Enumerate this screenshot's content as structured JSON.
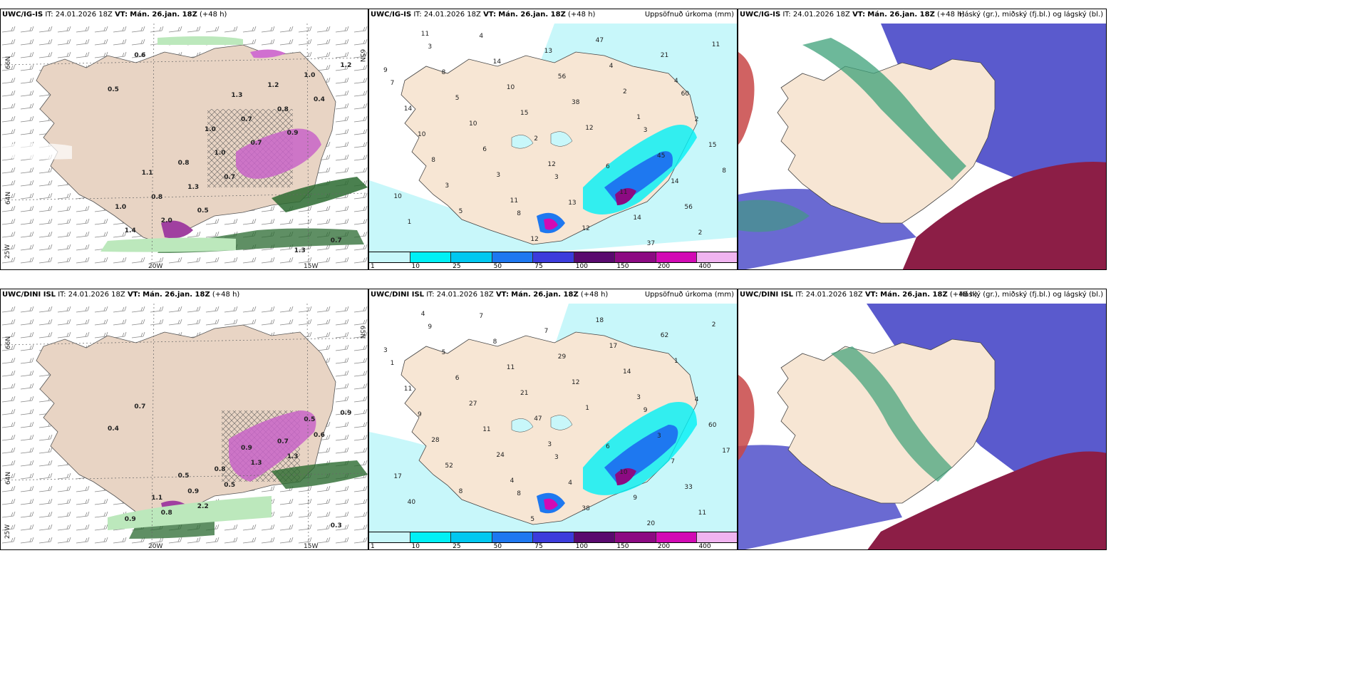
{
  "rows": [
    {
      "model": "UWC/IG-IS",
      "it_label": "IT:",
      "it": "24.01.2026 18Z",
      "vt_label": "VT:",
      "vt": "Mán. 26.jan. 18Z",
      "lead": "(+48 h)"
    },
    {
      "model": "UWC/DINI ISL",
      "it_label": "IT:",
      "it": "24.01.2026 18Z",
      "vt_label": "VT:",
      "vt": "Mán. 26.jan. 18Z",
      "lead": "(+48 h)"
    }
  ],
  "precip_title": "Uppsöfnuð úrkoma (mm)",
  "cloud_title": "Háský (gr.), miðský (fj.bl.) og lágský (bl.)",
  "axes": {
    "lat_66": "66N",
    "lat_64": "64N",
    "lat_65": "65N",
    "lon_20": "20W",
    "lon_15": "15W",
    "lon_25": "25W"
  },
  "colorbar": {
    "ticks": [
      "1",
      "10",
      "25",
      "50",
      "75",
      "100",
      "150",
      "200",
      "400"
    ],
    "colors": [
      "#c8f7fa",
      "#00f0f5",
      "#00c8f0",
      "#1e78f0",
      "#3c3cdc",
      "#5a0a6e",
      "#8c0a82",
      "#d20ab4",
      "#f0b4f0"
    ]
  },
  "colors": {
    "land": "#f7e6d4",
    "sea_precip": "#c8f7fa",
    "mslp_land": "#e8d4c4",
    "green_light": "#cdeecd",
    "green_dark": "#1e5a28",
    "cloud_blue": "#5a5acd",
    "cloud_red": "#8c1e46",
    "cloud_green": "#3ca078"
  },
  "precip_top_labels": [
    "9",
    "11",
    "1",
    "11",
    "12",
    "4",
    "5",
    "12",
    "11",
    "3",
    "2",
    "1",
    "2",
    "21",
    "3",
    "38",
    "2",
    "6",
    "4",
    "10",
    "15",
    "37",
    "8",
    "56",
    "56",
    "10",
    "47",
    "8",
    "10",
    "14",
    "10",
    "13",
    "14",
    "5",
    "12",
    "15",
    "14",
    "11",
    "14",
    "12",
    "45",
    "8",
    "13",
    "2",
    "4",
    "6",
    "7",
    "8",
    "3",
    "3",
    "3",
    "60"
  ],
  "precip_bottom_labels": [
    "3",
    "4",
    "3",
    "4",
    "3",
    "1",
    "8",
    "1",
    "2",
    "24",
    "14",
    "40",
    "47",
    "62",
    "52",
    "12",
    "11",
    "11",
    "17",
    "17",
    "21",
    "20",
    "28",
    "29",
    "33",
    "27",
    "18",
    "17",
    "11",
    "9",
    "9",
    "7",
    "7",
    "6",
    "38",
    "60",
    "8",
    "10",
    "11",
    "5",
    "3",
    "5",
    "4",
    "4",
    "7",
    "6",
    "1",
    "8",
    "9",
    "9",
    "3"
  ],
  "mslp_top_labels": [
    "0.5",
    "0.5",
    "0.9",
    "0.6",
    "0.7",
    "0.4",
    "2.0",
    "0.7",
    "1.2",
    "1.3",
    "0.8",
    "1.4",
    "1.0",
    "1.0",
    "0.8",
    "0.7",
    "0.7",
    "0.8",
    "1.2",
    "1.0",
    "1.0",
    "1.3",
    "1.1",
    "1.3"
  ],
  "mslp_bottom_labels": [
    "0.4",
    "2.2",
    "1.3",
    "0.7",
    "0.5",
    "0.6",
    "0.8",
    "1.3",
    "0.9",
    "0.9",
    "0.7",
    "0.9",
    "0.8",
    "0.5",
    "1.1",
    "0.9",
    "0.3",
    "0.5"
  ]
}
